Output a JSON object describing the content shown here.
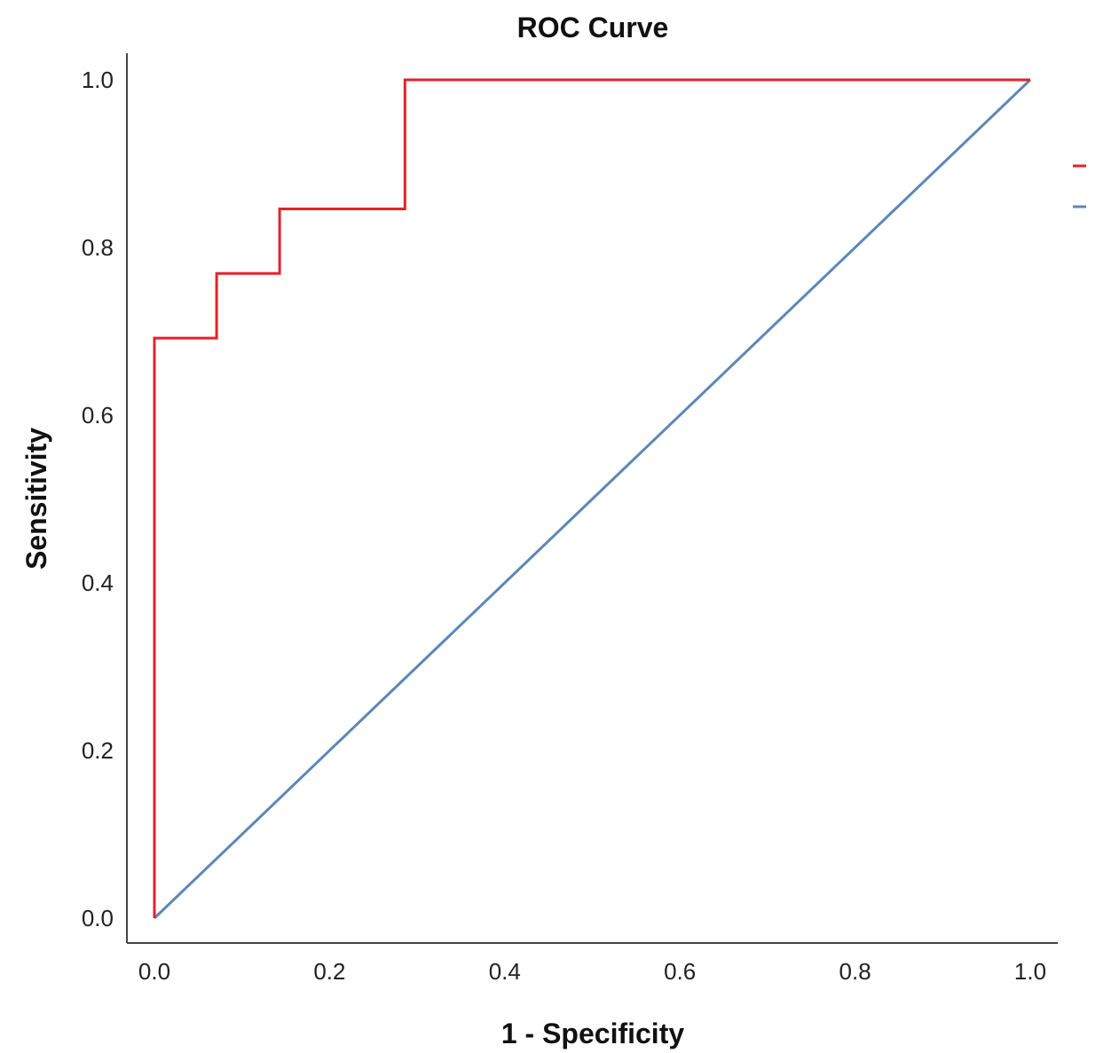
{
  "chart_data": {
    "type": "line",
    "title": "ROC Curve",
    "xlabel": "1 - Specificity",
    "ylabel": "Sensitivity",
    "xlim": [
      0.0,
      1.0
    ],
    "ylim": [
      0.0,
      1.0
    ],
    "x_ticks": [
      "0.0",
      "0.2",
      "0.4",
      "0.6",
      "0.8",
      "1.0"
    ],
    "y_ticks": [
      "0.0",
      "0.2",
      "0.4",
      "0.6",
      "0.8",
      "1.0"
    ],
    "grid": false,
    "legend_position": "right",
    "series": [
      {
        "color": "#e8202a",
        "x": [
          0.0,
          0.0,
          0.071,
          0.071,
          0.143,
          0.143,
          0.286,
          0.286,
          1.0
        ],
        "y": [
          0.0,
          0.692,
          0.692,
          0.769,
          0.769,
          0.846,
          0.846,
          1.0,
          1.0
        ]
      },
      {
        "color": "#5b87b8",
        "x": [
          0.0,
          1.0
        ],
        "y": [
          0.0,
          1.0
        ]
      }
    ]
  }
}
